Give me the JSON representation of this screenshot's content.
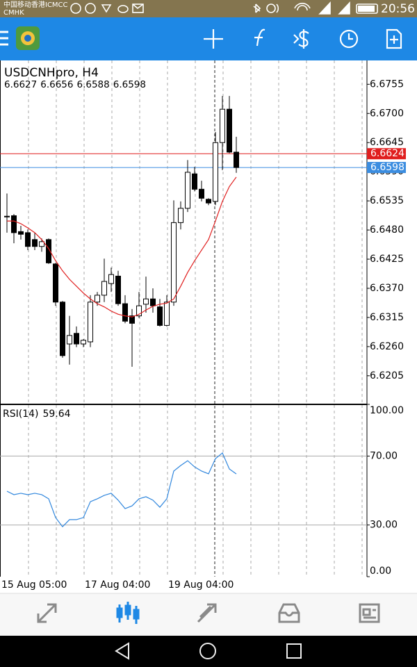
{
  "status_bar": {
    "carrier": "中国移动香港ICMCC",
    "carrier2": "CMHK",
    "time": "20:56"
  },
  "ask_line": {
    "value": 6.6624,
    "color": "#e01e1e"
  },
  "bid_color": "#3b8de0",
  "chart_data": [
    {
      "type": "candlestick",
      "title": "USDCNHpro, H4",
      "categories": [
        "15 Aug 05:00",
        null,
        null,
        null,
        null,
        null,
        null,
        null,
        null,
        null,
        null,
        null,
        "17 Aug 04:00",
        null,
        null,
        null,
        null,
        null,
        null,
        null,
        null,
        null,
        null,
        null,
        "19 Aug 04:00",
        null,
        null,
        null,
        null,
        null,
        null,
        null,
        null,
        null
      ],
      "open": [
        6.6506,
        6.6507,
        6.6477,
        6.6475,
        6.6462,
        6.6449,
        6.6462,
        6.6416,
        6.6344,
        6.6265,
        6.6285,
        6.6265,
        6.6269,
        6.6344,
        6.6357,
        6.6379,
        6.6393,
        6.6341,
        6.6318,
        6.6318,
        6.634,
        6.635,
        6.6335,
        6.63,
        6.6344,
        6.6494,
        6.6521,
        6.6586,
        6.6557,
        6.6538,
        6.6534,
        6.6645,
        6.6708,
        6.6627
      ],
      "high": [
        6.6549,
        6.651,
        6.6488,
        6.6481,
        6.6475,
        6.6464,
        6.6464,
        6.6418,
        6.6346,
        6.6318,
        6.6298,
        6.6274,
        6.6357,
        6.6363,
        6.6426,
        6.6409,
        6.6403,
        6.6357,
        6.6331,
        6.6363,
        6.6392,
        6.637,
        6.635,
        6.6357,
        6.6536,
        6.6534,
        6.6612,
        6.6599,
        6.6573,
        6.654,
        6.6665,
        6.6733,
        6.6733,
        6.6656
      ],
      "low": [
        6.6475,
        6.6455,
        6.6462,
        6.6442,
        6.6442,
        6.6439,
        6.6416,
        6.6337,
        6.6239,
        6.6226,
        6.6259,
        6.6259,
        6.6259,
        6.6337,
        6.6344,
        6.6363,
        6.6337,
        6.6304,
        6.6222,
        6.6314,
        6.6324,
        6.6324,
        6.6298,
        6.6298,
        6.6337,
        6.6481,
        6.6514,
        6.6553,
        6.6534,
        6.6527,
        6.6527,
        6.6593,
        6.6625,
        6.6588
      ],
      "close": [
        6.6506,
        6.6475,
        6.6472,
        6.6449,
        6.6449,
        6.6458,
        6.6418,
        6.6344,
        6.6243,
        6.6281,
        6.6265,
        6.6272,
        6.6344,
        6.6357,
        6.6383,
        6.6396,
        6.6341,
        6.6308,
        6.6304,
        6.6337,
        6.635,
        6.6337,
        6.63,
        6.6344,
        6.6494,
        6.6521,
        6.6589,
        6.6557,
        6.654,
        6.6531,
        6.6645,
        6.6708,
        6.6627,
        6.6598
      ],
      "ma": {
        "color": "#e01e1e",
        "values": [
          6.6497,
          6.6497,
          6.6492,
          6.6484,
          6.6475,
          6.6462,
          6.6445,
          6.6422,
          6.6403,
          6.6387,
          6.6374,
          6.6361,
          6.635,
          6.6341,
          6.6335,
          6.6327,
          6.6321,
          6.6318,
          6.6316,
          6.6321,
          6.6329,
          6.6336,
          6.634,
          6.6342,
          6.635,
          6.6374,
          6.64,
          6.6422,
          6.6442,
          6.6462,
          6.6497,
          6.6534,
          6.6562,
          6.658
        ]
      },
      "up_color": "#ffffff",
      "down_color": "#000000",
      "ylim": [
        6.6151,
        6.68
      ],
      "yticks": [
        {
          "value": 6.6755,
          "label": "6.6755"
        },
        {
          "value": 6.67,
          "label": "6.6700"
        },
        {
          "value": 6.6645,
          "label": "6.6645"
        },
        {
          "value": 6.659,
          "label": "6.6590"
        },
        {
          "value": 6.6535,
          "label": "6.6535"
        },
        {
          "value": 6.648,
          "label": "6.6480"
        },
        {
          "value": 6.6425,
          "label": "6.6425"
        },
        {
          "value": 6.637,
          "label": "6.6370"
        },
        {
          "value": 6.6315,
          "label": "6.6315"
        },
        {
          "value": 6.626,
          "label": "6.6260"
        },
        {
          "value": 6.6205,
          "label": "6.6205"
        }
      ]
    },
    {
      "type": "line",
      "title": "RSI(14)",
      "color": "#2f86dd",
      "values": [
        49.6,
        47.6,
        48.4,
        47.6,
        48.4,
        47.6,
        45.2,
        34.3,
        29.0,
        33.1,
        33.1,
        34.3,
        43.5,
        45.2,
        47.2,
        48.4,
        44.4,
        39.5,
        41.1,
        45.2,
        46.4,
        44.4,
        40.3,
        45.2,
        61.3,
        64.5,
        67.3,
        63.7,
        61.3,
        59.7,
        68.5,
        71.8,
        62.5,
        59.64
      ],
      "ylim": [
        0,
        100
      ],
      "yticks": [
        {
          "value": 100,
          "label": "100.00"
        },
        {
          "value": 70,
          "label": "70.00"
        },
        {
          "value": 30,
          "label": "30.00"
        },
        {
          "value": 0,
          "label": "0.00"
        }
      ]
    }
  ]
}
